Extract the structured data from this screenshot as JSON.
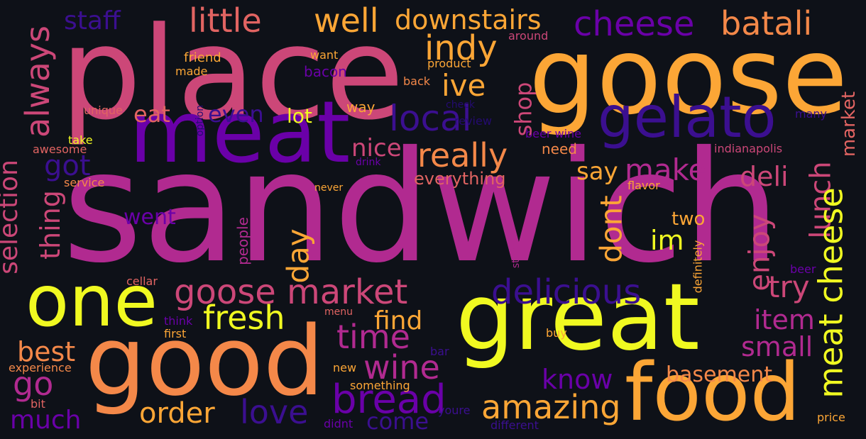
{
  "colors": {
    "background": "#0e1118",
    "yellow": "#f0f921",
    "orange": "#fca636",
    "salmon": "#e16462",
    "pink": "#cc4778",
    "magenta": "#b12a90",
    "purple": "#6a00a8",
    "indigo": "#3b0f90",
    "dark": "#240b70"
  },
  "words": [
    {
      "id": "sandwich",
      "text": "sandwich"
    },
    {
      "id": "place",
      "text": "place"
    },
    {
      "id": "goose",
      "text": "goose"
    },
    {
      "id": "meat",
      "text": "meat"
    },
    {
      "id": "great",
      "text": "great"
    },
    {
      "id": "good",
      "text": "good"
    },
    {
      "id": "food",
      "text": "food"
    },
    {
      "id": "one",
      "text": "one"
    },
    {
      "id": "gelato",
      "text": "gelato"
    },
    {
      "id": "goose-market",
      "text": "goose market"
    },
    {
      "id": "delicious",
      "text": "delicious"
    },
    {
      "id": "bread",
      "text": "bread"
    },
    {
      "id": "local",
      "text": "local"
    },
    {
      "id": "really",
      "text": "really"
    },
    {
      "id": "amazing",
      "text": "amazing"
    },
    {
      "id": "fresh",
      "text": "fresh"
    },
    {
      "id": "cheese-top",
      "text": "cheese"
    },
    {
      "id": "batali",
      "text": "batali"
    },
    {
      "id": "indy",
      "text": "indy"
    },
    {
      "id": "well",
      "text": "well"
    },
    {
      "id": "downstairs",
      "text": "downstairs"
    },
    {
      "id": "little",
      "text": "little"
    },
    {
      "id": "ive",
      "text": "ive"
    },
    {
      "id": "time",
      "text": "time"
    },
    {
      "id": "wine",
      "text": "wine"
    },
    {
      "id": "love",
      "text": "love"
    },
    {
      "id": "order",
      "text": "order"
    },
    {
      "id": "go",
      "text": "go"
    },
    {
      "id": "best",
      "text": "best"
    },
    {
      "id": "much",
      "text": "much"
    },
    {
      "id": "got",
      "text": "got"
    },
    {
      "id": "eat",
      "text": "eat"
    },
    {
      "id": "even",
      "text": "even"
    },
    {
      "id": "nice",
      "text": "nice"
    },
    {
      "id": "make",
      "text": "make"
    },
    {
      "id": "say",
      "text": "say"
    },
    {
      "id": "deli",
      "text": "deli"
    },
    {
      "id": "try",
      "text": "try"
    },
    {
      "id": "item",
      "text": "item"
    },
    {
      "id": "small",
      "text": "small"
    },
    {
      "id": "know",
      "text": "know"
    },
    {
      "id": "basement",
      "text": "basement"
    },
    {
      "id": "find",
      "text": "find"
    },
    {
      "id": "come",
      "text": "come"
    },
    {
      "id": "im",
      "text": "im"
    },
    {
      "id": "two",
      "text": "two"
    },
    {
      "id": "staff",
      "text": "staff"
    },
    {
      "id": "went",
      "text": "went"
    },
    {
      "id": "lot",
      "text": "lot"
    },
    {
      "id": "way",
      "text": "way"
    },
    {
      "id": "need",
      "text": "need"
    },
    {
      "id": "everything",
      "text": "everything"
    },
    {
      "id": "bacon",
      "text": "bacon"
    },
    {
      "id": "always",
      "text": "always"
    },
    {
      "id": "selection",
      "text": "selection"
    },
    {
      "id": "thing",
      "text": "thing"
    },
    {
      "id": "day",
      "text": "day"
    },
    {
      "id": "dont",
      "text": "dont"
    },
    {
      "id": "shop",
      "text": "shop"
    },
    {
      "id": "enjoy",
      "text": "enjoy"
    },
    {
      "id": "lunch",
      "text": "lunch"
    },
    {
      "id": "meat-cheese",
      "text": "meat cheese"
    },
    {
      "id": "market",
      "text": "market"
    },
    {
      "id": "people",
      "text": "people"
    },
    {
      "id": "stop",
      "text": "stop"
    },
    {
      "id": "definitely",
      "text": "definitely"
    },
    {
      "id": "want",
      "text": "want"
    },
    {
      "id": "friend",
      "text": "friend"
    },
    {
      "id": "made",
      "text": "made"
    },
    {
      "id": "option",
      "text": "option"
    },
    {
      "id": "product",
      "text": "product"
    },
    {
      "id": "around",
      "text": "around"
    },
    {
      "id": "back",
      "text": "back"
    },
    {
      "id": "check",
      "text": "check"
    },
    {
      "id": "unique",
      "text": "unique"
    },
    {
      "id": "take",
      "text": "take"
    },
    {
      "id": "awesome",
      "text": "awesome"
    },
    {
      "id": "service",
      "text": "service"
    },
    {
      "id": "drink",
      "text": "drink"
    },
    {
      "id": "review",
      "text": "review"
    },
    {
      "id": "beer-wine",
      "text": "beer wine"
    },
    {
      "id": "many",
      "text": "many"
    },
    {
      "id": "indianapolis",
      "text": "indianapolis"
    },
    {
      "id": "never",
      "text": "never"
    },
    {
      "id": "flavor",
      "text": "flavor"
    },
    {
      "id": "cellar",
      "text": "cellar"
    },
    {
      "id": "think",
      "text": "think"
    },
    {
      "id": "first",
      "text": "first"
    },
    {
      "id": "menu",
      "text": "menu"
    },
    {
      "id": "buy",
      "text": "buy"
    },
    {
      "id": "beer",
      "text": "beer"
    },
    {
      "id": "experience",
      "text": "experience"
    },
    {
      "id": "new",
      "text": "new"
    },
    {
      "id": "bar",
      "text": "bar"
    },
    {
      "id": "something",
      "text": "something"
    },
    {
      "id": "bit",
      "text": "bit"
    },
    {
      "id": "youre",
      "text": "youre"
    },
    {
      "id": "didnt",
      "text": "didnt"
    },
    {
      "id": "different",
      "text": "different"
    },
    {
      "id": "price",
      "text": "price"
    }
  ]
}
